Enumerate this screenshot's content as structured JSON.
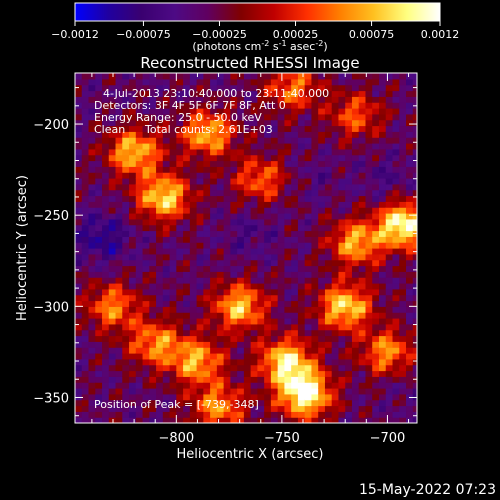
{
  "colorbar": {
    "ticks": [
      "-0.0012",
      "-0.00075",
      "-0.00025",
      "0.00025",
      "0.00075",
      "0.0012"
    ],
    "min": -0.0012,
    "max": 0.0012,
    "unit_label": "(photons cm",
    "unit_sup1": "-2",
    "unit_mid": " s",
    "unit_sup2": "-1",
    "unit_end": " asec",
    "unit_sup3": "-2",
    "unit_close": ")",
    "colormap": [
      "#0000ff",
      "#2000a0",
      "#3a0070",
      "#4d0a85",
      "#600060",
      "#800000",
      "#c00000",
      "#ff3000",
      "#ff8000",
      "#ffc020",
      "#ffff80",
      "#ffffff"
    ]
  },
  "chart_data": {
    "type": "heatmap",
    "title": "Reconstructed RHESSI Image",
    "xlabel": "Heliocentric X (arcsec)",
    "ylabel": "Heliocentric Y (arcsec)",
    "xlim": [
      -848,
      -686
    ],
    "ylim": [
      -364,
      -172
    ],
    "x_ticks": [
      -800,
      -750,
      -700
    ],
    "y_ticks": [
      -200,
      -250,
      -300,
      -350
    ],
    "x_tick_labels": [
      "−800",
      "−750",
      "−700"
    ],
    "y_tick_labels": [
      "−200",
      "−250",
      "−300",
      "−350"
    ],
    "annotations": {
      "line1": "4-Jul-2013 23:10:40.000 to 23:11:40.000",
      "line2": "Detectors: 3F 4F 5F 6F 7F 8F, Att 0",
      "line3": "Energy Range: 25.0 - 50.0 keV",
      "line4_a": "Clean",
      "line4_b": "Total counts: 2.61E+03",
      "peak": "Position of Peak = [-739,-348]"
    },
    "peak_position": [
      -739,
      -348
    ],
    "total_counts": 2610,
    "energy_range_kev": [
      25.0,
      50.0
    ],
    "hot_spots": [
      {
        "x": -739,
        "y": -348,
        "value": 0.0012
      },
      {
        "x": -692,
        "y": -255,
        "value": 0.00115
      },
      {
        "x": -748,
        "y": -330,
        "value": 0.00095
      },
      {
        "x": -806,
        "y": -240,
        "value": 0.0009
      },
      {
        "x": -820,
        "y": -215,
        "value": 0.0008
      },
      {
        "x": -785,
        "y": -205,
        "value": 0.00075
      },
      {
        "x": -770,
        "y": -300,
        "value": 0.0008
      },
      {
        "x": -720,
        "y": -300,
        "value": 0.0009
      },
      {
        "x": -715,
        "y": -265,
        "value": 0.0007
      },
      {
        "x": -700,
        "y": -325,
        "value": 0.0006
      },
      {
        "x": -790,
        "y": -330,
        "value": 0.0007
      },
      {
        "x": -810,
        "y": -320,
        "value": 0.0006
      },
      {
        "x": -760,
        "y": -230,
        "value": 0.00045
      },
      {
        "x": -715,
        "y": -195,
        "value": 0.0004
      },
      {
        "x": -745,
        "y": -180,
        "value": 0.0005
      },
      {
        "x": -830,
        "y": -300,
        "value": 0.00055
      },
      {
        "x": -780,
        "y": -355,
        "value": 0.0006
      }
    ],
    "cold_spots": [
      {
        "x": -835,
        "y": -262,
        "value": -0.0009
      },
      {
        "x": -765,
        "y": -260,
        "value": -0.0006
      },
      {
        "x": -735,
        "y": -230,
        "value": -0.0005
      },
      {
        "x": -700,
        "y": -230,
        "value": -0.0006
      },
      {
        "x": -690,
        "y": -345,
        "value": -0.0005
      },
      {
        "x": -840,
        "y": -185,
        "value": -0.0004
      }
    ]
  },
  "footer": {
    "timestamp": "15-May-2022 07:23"
  }
}
